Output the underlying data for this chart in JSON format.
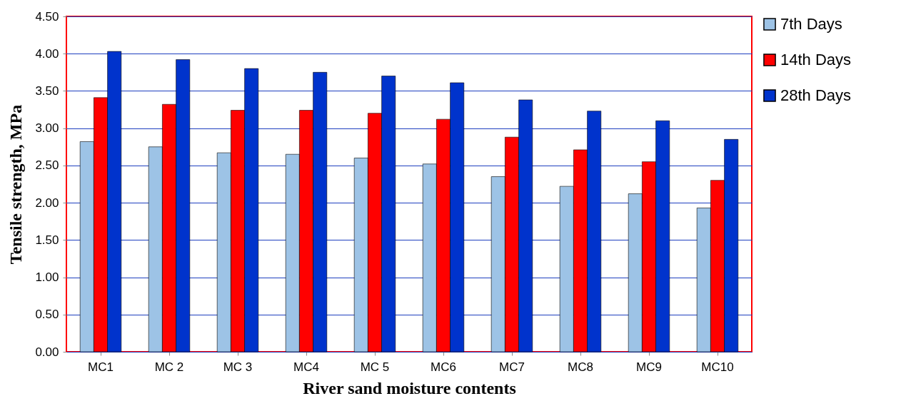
{
  "chart_data": {
    "type": "bar",
    "xlabel": "River sand moisture  contents",
    "ylabel": "Tensile strength, MPa",
    "categories": [
      "MC1",
      "MC 2",
      "MC 3",
      "MC4",
      "MC 5",
      "MC6",
      "MC7",
      "MC8",
      "MC9",
      "MC10"
    ],
    "series": [
      {
        "name": "7th Days",
        "color": "#9dc3e6",
        "values": [
          2.82,
          2.75,
          2.67,
          2.65,
          2.6,
          2.52,
          2.35,
          2.22,
          2.12,
          1.93
        ]
      },
      {
        "name": "14th Days",
        "color": "#ff0000",
        "values": [
          3.41,
          3.32,
          3.24,
          3.24,
          3.2,
          3.12,
          2.88,
          2.71,
          2.55,
          2.3
        ]
      },
      {
        "name": "28th Days",
        "color": "#0033cc",
        "values": [
          4.03,
          3.92,
          3.8,
          3.75,
          3.7,
          3.61,
          3.38,
          3.23,
          3.1,
          2.85
        ]
      }
    ],
    "ylim": [
      0,
      4.5
    ],
    "yticks": [
      {
        "value": 0,
        "label": "0.00"
      },
      {
        "value": 0.5,
        "label": "0.50"
      },
      {
        "value": 1,
        "label": "1.00"
      },
      {
        "value": 1.5,
        "label": "1.50"
      },
      {
        "value": 2,
        "label": "2.00"
      },
      {
        "value": 2.5,
        "label": "2.50"
      },
      {
        "value": 3,
        "label": "3.00"
      },
      {
        "value": 3.5,
        "label": "3.50"
      },
      {
        "value": 4,
        "label": "4.00"
      },
      {
        "value": 4.5,
        "label": "4.50"
      }
    ],
    "grid": "y",
    "legend": "right"
  }
}
